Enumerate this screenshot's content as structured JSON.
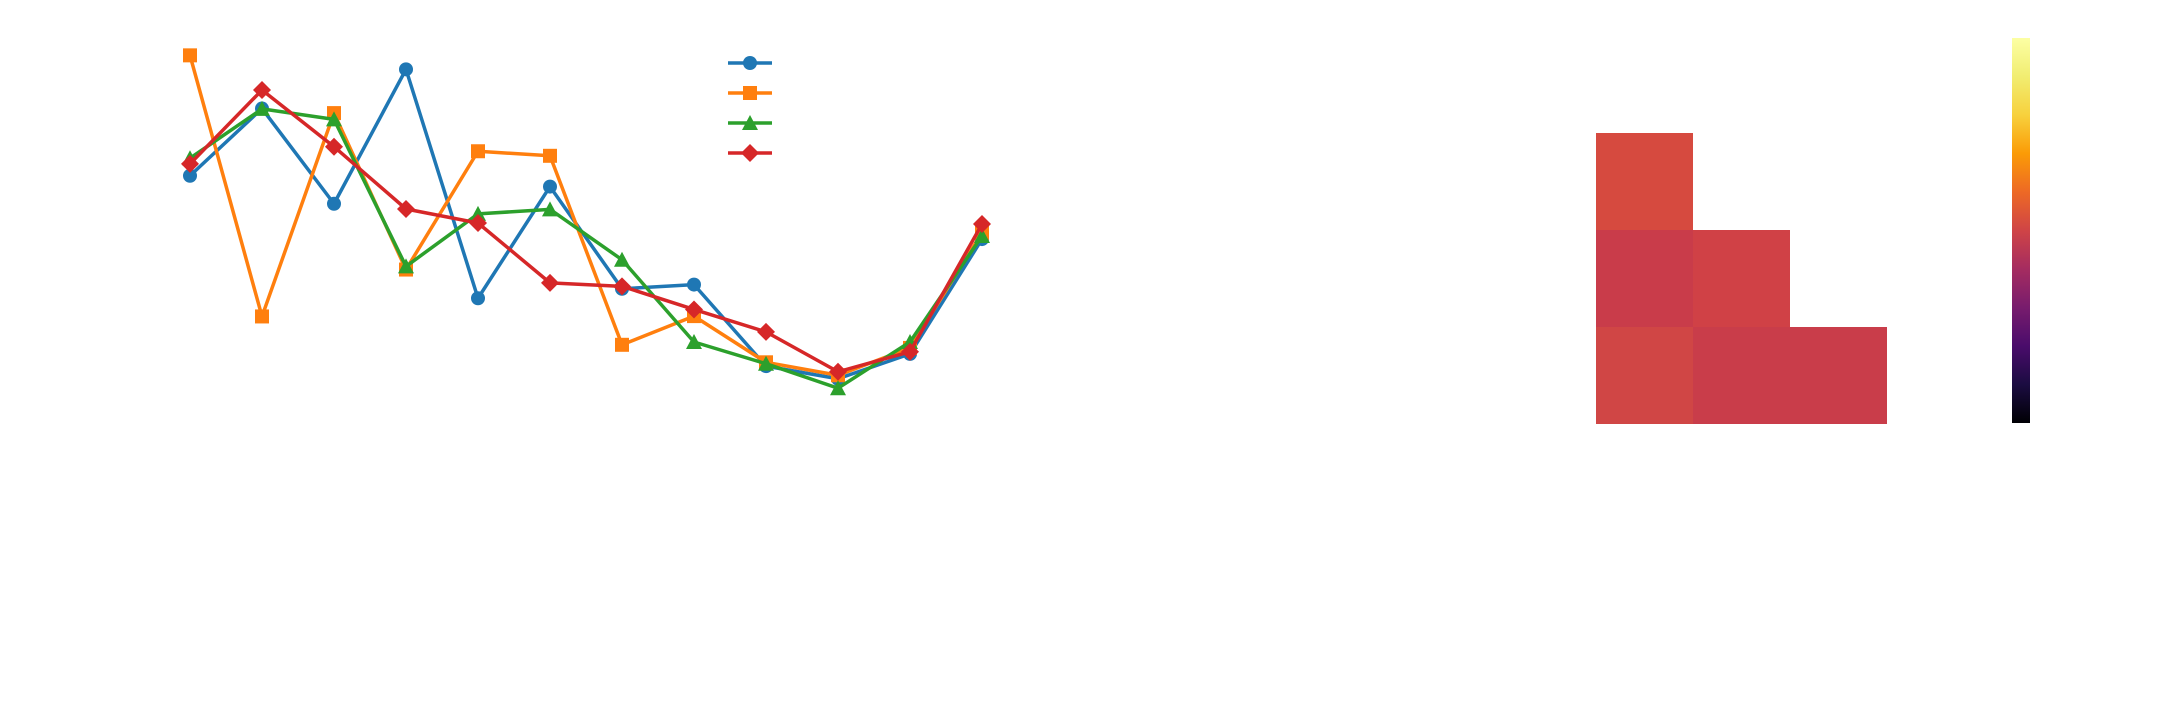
{
  "chart_data": [
    {
      "type": "line",
      "x": [
        1,
        2,
        3,
        4,
        5,
        6,
        7,
        8,
        9,
        10,
        11,
        12
      ],
      "series": [
        {
          "values": [
            0.655,
            0.847,
            0.575,
            0.959,
            0.305,
            0.624,
            0.332,
            0.344,
            0.111,
            0.075,
            0.146,
            0.474
          ],
          "color": "#1f77b4",
          "marker": "circle"
        },
        {
          "values": [
            0.999,
            0.253,
            0.834,
            0.387,
            0.725,
            0.712,
            0.172,
            0.254,
            0.122,
            0.085,
            0.163,
            0.492
          ],
          "color": "#ff7f0e",
          "marker": "square"
        },
        {
          "values": [
            0.705,
            0.846,
            0.816,
            0.396,
            0.546,
            0.559,
            0.415,
            0.18,
            0.118,
            0.048,
            0.18,
            0.483
          ],
          "color": "#2ca02c",
          "marker": "triangle"
        },
        {
          "values": [
            0.689,
            0.9,
            0.738,
            0.56,
            0.52,
            0.349,
            0.339,
            0.273,
            0.209,
            0.095,
            0.152,
            0.517
          ],
          "color": "#d62728",
          "marker": "diamond"
        }
      ],
      "legend": "top-center",
      "grid": false
    },
    {
      "type": "heatmap",
      "colormap": "inferno",
      "colorbar": true,
      "cells": [
        {
          "row": 0,
          "col": 0,
          "color": "#d64a3f"
        },
        {
          "row": 1,
          "col": 0,
          "color": "#c93c4a"
        },
        {
          "row": 1,
          "col": 1,
          "color": "#d04146"
        },
        {
          "row": 2,
          "col": 0,
          "color": "#d04645"
        },
        {
          "row": 2,
          "col": 1,
          "color": "#c93d4a"
        },
        {
          "row": 2,
          "col": 2,
          "color": "#c93d4a"
        }
      ]
    }
  ]
}
